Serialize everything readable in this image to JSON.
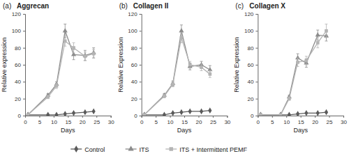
{
  "chart_data": [
    {
      "type": "line",
      "title": "Aggrecan",
      "annotations": [
        "(a)"
      ],
      "x_label": "Days",
      "y_label": "Relative expression",
      "x": [
        1,
        8,
        11,
        14,
        17,
        21,
        24
      ],
      "xlim": [
        0,
        30
      ],
      "xticks": [
        0,
        5,
        10,
        15,
        20,
        25,
        30
      ],
      "ylim": [
        0,
        120
      ],
      "yticks": [
        0,
        20,
        40,
        60,
        80,
        100,
        120
      ],
      "grid": false,
      "legend": "bottom",
      "series": [
        {
          "name": "Control",
          "color": "#5a5a5a",
          "marker": "diamond",
          "line_style": "solid",
          "values": [
            1,
            1,
            1,
            2,
            3,
            4,
            5
          ],
          "errors": [
            0.5,
            0.5,
            0.5,
            0.5,
            0.5,
            0.5,
            0.5
          ]
        },
        {
          "name": "ITS",
          "color": "#8c8c8c",
          "marker": "triangle",
          "line_style": "solid",
          "values": [
            1,
            24,
            37,
            100,
            72,
            71,
            74
          ],
          "errors": [
            0.5,
            2,
            3,
            8,
            6,
            6,
            6
          ]
        },
        {
          "name": "ITS + Intermittent PEMF",
          "color": "#b4b4b4",
          "marker": "square",
          "line_style": "solid",
          "values": [
            1,
            22,
            35,
            88,
            80,
            70,
            73
          ],
          "errors": [
            0.5,
            2,
            3,
            6,
            6,
            5,
            5
          ]
        }
      ]
    },
    {
      "type": "line",
      "title": "Collagen II",
      "annotations": [
        "(b)"
      ],
      "x_label": "Days",
      "y_label": "Relative Expression",
      "x": [
        1,
        8,
        11,
        14,
        17,
        21,
        24
      ],
      "xlim": [
        0,
        30
      ],
      "xticks": [
        0,
        5,
        10,
        15,
        20,
        25,
        30
      ],
      "ylim": [
        0,
        120
      ],
      "yticks": [
        0,
        20,
        40,
        60,
        80,
        100,
        120
      ],
      "grid": false,
      "series": [
        {
          "color": "#5a5a5a",
          "marker": "diamond",
          "line_style": "solid",
          "values": [
            1,
            1,
            3,
            4,
            5,
            5,
            6
          ],
          "errors": [
            0.5,
            0.5,
            0.5,
            0.5,
            0.5,
            0.5,
            0.5
          ]
        },
        {
          "color": "#8c8c8c",
          "marker": "triangle",
          "line_style": "solid",
          "values": [
            1,
            24,
            38,
            100,
            58,
            60,
            54
          ],
          "errors": [
            0.5,
            2,
            3,
            7,
            4,
            4,
            5
          ]
        },
        {
          "color": "#b4b4b4",
          "marker": "square",
          "line_style": "solid",
          "values": [
            1,
            23,
            37,
            92,
            60,
            57,
            49
          ],
          "errors": [
            0.5,
            2,
            3,
            6,
            4,
            4,
            4
          ]
        }
      ]
    },
    {
      "type": "line",
      "title": "Collagen X",
      "annotations": [
        "(c)"
      ],
      "x_label": "Days",
      "y_label": "Relative Expression",
      "x": [
        1,
        8,
        11,
        14,
        17,
        21,
        24
      ],
      "xlim": [
        0,
        30
      ],
      "xticks": [
        0,
        5,
        10,
        15,
        20,
        25,
        30
      ],
      "ylim": [
        0,
        120
      ],
      "yticks": [
        0,
        20,
        40,
        60,
        80,
        100,
        120
      ],
      "grid": false,
      "series": [
        {
          "color": "#5a5a5a",
          "marker": "diamond",
          "line_style": "solid",
          "values": [
            1,
            1,
            1,
            2,
            3,
            3,
            4
          ],
          "errors": [
            0.5,
            0.5,
            0.5,
            0.5,
            0.5,
            0.5,
            0.5
          ]
        },
        {
          "color": "#8c8c8c",
          "marker": "triangle",
          "line_style": "solid",
          "values": [
            1,
            1,
            22,
            68,
            62,
            95,
            94
          ],
          "errors": [
            0.5,
            0.5,
            2,
            5,
            5,
            6,
            6
          ]
        },
        {
          "color": "#b4b4b4",
          "marker": "square",
          "line_style": "solid",
          "values": [
            1,
            1,
            20,
            63,
            65,
            86,
            100
          ],
          "errors": [
            0.5,
            0.5,
            2,
            5,
            5,
            6,
            8
          ]
        }
      ]
    }
  ]
}
